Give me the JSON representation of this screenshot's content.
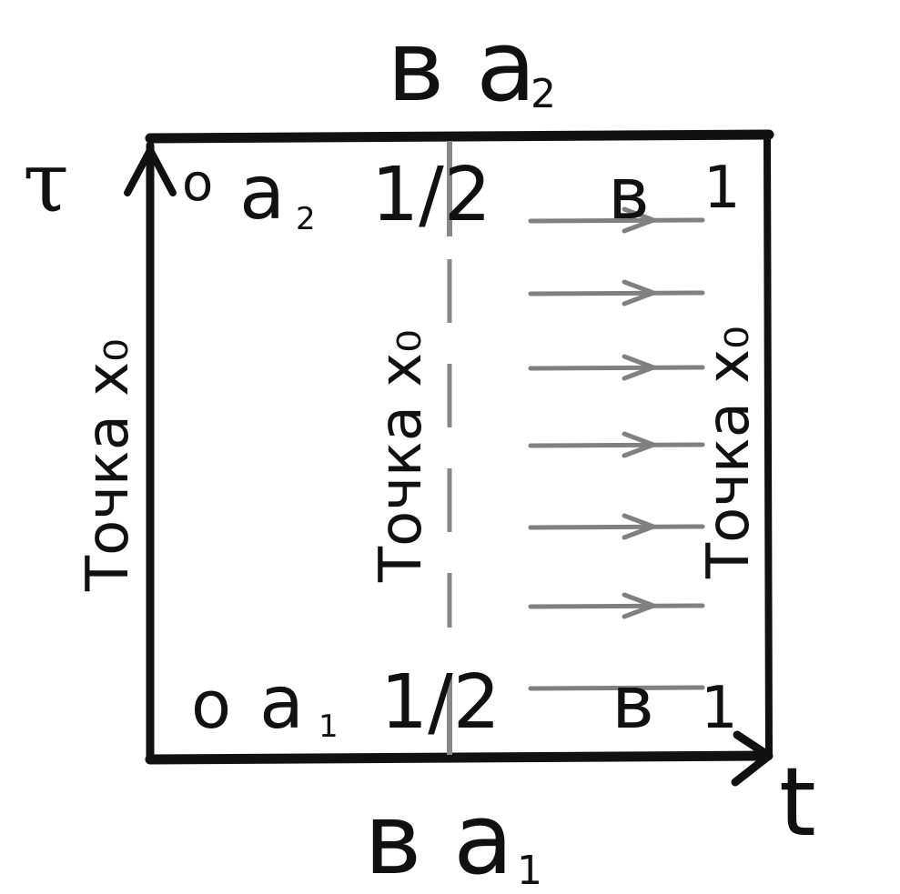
{
  "diagram": {
    "top_label": {
      "main": "в а",
      "sub": "2"
    },
    "bottom_label": {
      "main": "в а",
      "sub": "1"
    },
    "axis_vertical": "τ",
    "axis_horizontal": "t",
    "top_row": {
      "zero": "о",
      "a": "а",
      "a_sub": "2",
      "half": "1/2",
      "b": "в",
      "one": "1"
    },
    "bottom_row": {
      "zero": "о",
      "a": "а",
      "a_sub": "1",
      "half": "1/2",
      "b": "в",
      "one": "1"
    },
    "left_vertical_text": "Точка x₀",
    "middle_vertical_text": "Точка x₀",
    "right_vertical_text": "Точка x₀",
    "arrow_count": 6,
    "colors": {
      "ink": "#111111",
      "gray_line": "#888888",
      "arrow": "#808080"
    }
  }
}
